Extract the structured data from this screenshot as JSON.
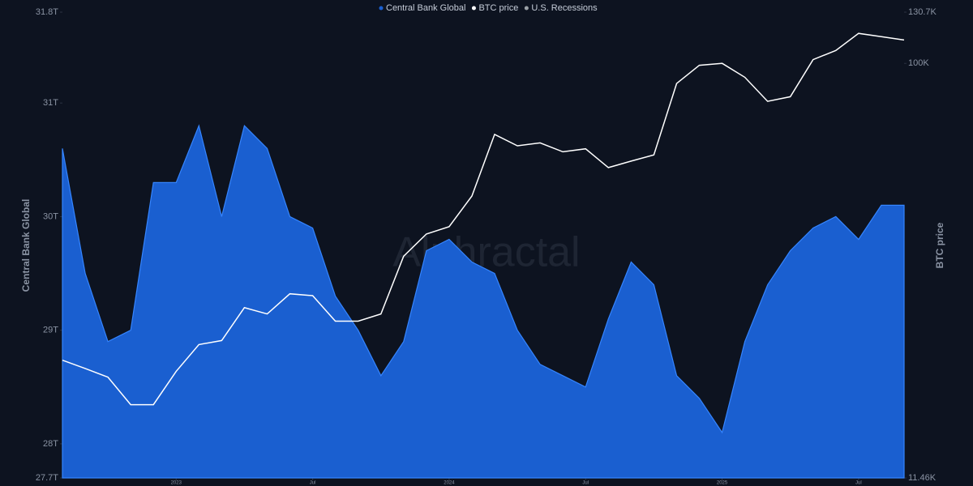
{
  "chart_data": {
    "type": "area-line",
    "watermark": "Alphractal",
    "ylabel": "Central Bank Global",
    "y2label": "BTC price",
    "x": [
      "2022-08",
      "2022-09",
      "2022-10",
      "2022-11",
      "2022-12",
      "2023-01",
      "2023-02",
      "2023-03",
      "2023-04",
      "2023-05",
      "2023-06",
      "2023-07",
      "2023-08",
      "2023-09",
      "2023-10",
      "2023-11",
      "2023-12",
      "2024-01",
      "2024-02",
      "2024-03",
      "2024-04",
      "2024-05",
      "2024-06",
      "2024-07",
      "2024-08",
      "2024-09",
      "2024-10",
      "2024-11",
      "2024-12",
      "2025-01",
      "2025-02",
      "2025-03",
      "2025-04",
      "2025-05",
      "2025-06",
      "2025-07",
      "2025-08",
      "2025-09"
    ],
    "series": [
      {
        "name": "Central Bank Global",
        "color": "#1a5fd0",
        "values": [
          30.6,
          29.5,
          28.9,
          29.0,
          30.3,
          30.3,
          30.8,
          30.0,
          30.8,
          30.6,
          30.0,
          29.9,
          29.3,
          29.0,
          28.6,
          28.9,
          29.7,
          29.8,
          29.6,
          29.5,
          29.0,
          28.7,
          28.6,
          28.5,
          29.1,
          29.6,
          29.4,
          28.6,
          28.4,
          28.1,
          28.9,
          29.4,
          29.7,
          29.9,
          30.0,
          29.8,
          30.1,
          30.1
        ]
      },
      {
        "name": "BTC price",
        "color": "#ffffff",
        "axis": "y2",
        "values": [
          21.2,
          20.3,
          19.4,
          16.8,
          16.8,
          20,
          23,
          23.5,
          27.9,
          27,
          30,
          29.7,
          26,
          26,
          27,
          36.5,
          41,
          42.6,
          50,
          69,
          65,
          66,
          63,
          64,
          58,
          60,
          62,
          90,
          99,
          100,
          93,
          82,
          84,
          102,
          107,
          117,
          115,
          113
        ]
      },
      {
        "name": "U.S. Recessions",
        "color": "#9aa0a6",
        "values": [
          null,
          null,
          null,
          null,
          null,
          null,
          null,
          null,
          null,
          null,
          null,
          null,
          null,
          null,
          null,
          null,
          null,
          null,
          null,
          null,
          null,
          null,
          null,
          null,
          null,
          null,
          null,
          null,
          null,
          null,
          null,
          null,
          null,
          null,
          null,
          null,
          null,
          null
        ]
      }
    ],
    "xlim": [
      "2022-08",
      "2025-09"
    ],
    "xticks": [
      {
        "value": "2023-01",
        "label": "2023"
      },
      {
        "value": "2023-07",
        "label": "Jul"
      },
      {
        "value": "2024-01",
        "label": "2024"
      },
      {
        "value": "2024-07",
        "label": "Jul"
      },
      {
        "value": "2025-01",
        "label": "2025"
      },
      {
        "value": "2025-07",
        "label": "Jul"
      }
    ],
    "ylim": [
      27.7,
      31.8
    ],
    "yticks": [
      {
        "value": 27.7,
        "label": "27.7T"
      },
      {
        "value": 28,
        "label": "28T"
      },
      {
        "value": 29,
        "label": "29T"
      },
      {
        "value": 30,
        "label": "30T"
      },
      {
        "value": 31,
        "label": "31T"
      },
      {
        "value": 31.8,
        "label": "31.8T"
      }
    ],
    "y2lim": [
      11.46,
      130.7
    ],
    "y2ticks": [
      {
        "value": 11.46,
        "label": "11.46K"
      },
      {
        "value": 100,
        "label": "100K"
      },
      {
        "value": 130.7,
        "label": "130.7K"
      }
    ],
    "y2scale": "log"
  }
}
